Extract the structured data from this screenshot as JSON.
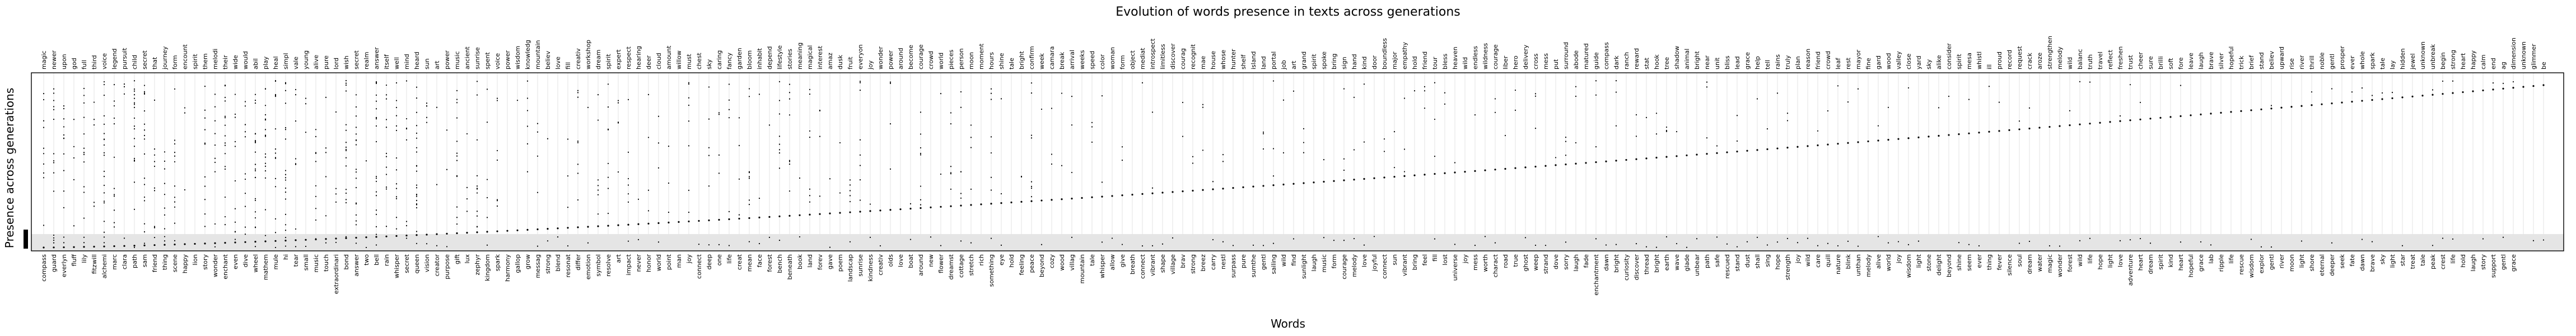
{
  "chart_data": {
    "type": "scatter",
    "title": "Evolution of words presence in texts across generations",
    "xlabel": "Words",
    "ylabel": "Presence across generations",
    "grid": "vertical",
    "y_range": [
      0,
      100
    ],
    "top_words": [
      "magic",
      "newer",
      "upon",
      "god",
      "full",
      "third",
      "voice",
      "legend",
      "pursuit",
      "child",
      "secret",
      "that",
      "journey",
      "form",
      "encount",
      "spirit",
      "them",
      "melodi",
      "their",
      "wide",
      "would",
      "abil",
      "play",
      "heal",
      "simpl",
      "vale",
      "young",
      "alive",
      "pure",
      "lord",
      "wish",
      "secret",
      "realm",
      "answer",
      "itself",
      "well",
      "mind",
      "heard",
      "sun",
      "art",
      "power",
      "music",
      "ancient",
      "sunrise",
      "spent",
      "voice",
      "power",
      "wisdom",
      "knowledg",
      "mountain",
      "believ",
      "love",
      "fill",
      "creativ",
      "workshop",
      "dream",
      "spirit",
      "expert",
      "respect",
      "hearing",
      "deer",
      "cloud",
      "amount",
      "willow",
      "must",
      "chest",
      "sky",
      "caring",
      "fancy",
      "garden",
      "bloom",
      "inhabit",
      "depend",
      "lifestyle",
      "stories",
      "meaning",
      "magical",
      "interest",
      "amaz",
      "dusk",
      "fruit",
      "everyon",
      "joy",
      "wonder",
      "power",
      "around",
      "become",
      "courage",
      "crowd",
      "world",
      "pieces",
      "person",
      "moon",
      "moment",
      "hours",
      "shine",
      "tale",
      "bright",
      "confirm",
      "week",
      "camara",
      "break",
      "arrival",
      "weeks",
      "speed",
      "color",
      "woman",
      "form",
      "object",
      "mediat",
      "introspect",
      "limitless",
      "discover",
      "courag",
      "recognit",
      "mae",
      "house",
      "whose",
      "hunter",
      "shelf",
      "island",
      "land",
      "portal",
      "job",
      "art",
      "grand",
      "spirit",
      "spoke",
      "bring",
      "sign",
      "hand",
      "kind",
      "door",
      "boundless",
      "major",
      "empathy",
      "hold",
      "friend",
      "tour",
      "bless",
      "heaven",
      "wild",
      "endless",
      "wildness",
      "courage",
      "liber",
      "hero",
      "delivery",
      "cross",
      "mess",
      "put",
      "surround",
      "abode",
      "matured",
      "guide",
      "compass",
      "dark",
      "ranch",
      "reward",
      "stat",
      "hook",
      "tree",
      "shadow",
      "animal",
      "bright",
      "near",
      "unit",
      "bliss",
      "lead",
      "grace",
      "help",
      "tell",
      "rains",
      "truly",
      "plan",
      "reason",
      "friend",
      "crowd",
      "leaf",
      "rest",
      "mayor",
      "fine",
      "gard",
      "wood",
      "valley",
      "close",
      "yard",
      "sky",
      "alike",
      "consider",
      "spirit",
      "mesa",
      "whistl",
      "ill",
      "proud",
      "record",
      "request",
      "crack",
      "aroze",
      "strengthen",
      "melody",
      "wild",
      "balanc",
      "truth",
      "travel",
      "reflect",
      "freshen",
      "trust",
      "cheer",
      "sure",
      "brilli",
      "soft",
      "fore",
      "leave",
      "laugh",
      "brave",
      "silver",
      "hopeful",
      "trick",
      "brief",
      "stand",
      "believ",
      "upward",
      "rise",
      "river",
      "thrill",
      "noble",
      "gentl",
      "prosper",
      "ever",
      "whole",
      "spark",
      "tale",
      "lay",
      "hidden",
      "jewel",
      "unknown",
      "unbreak",
      "begin",
      "strong",
      "heart",
      "happy",
      "calm",
      "end",
      "ag",
      "dimension",
      "unknown",
      "glimmer",
      "be"
    ],
    "bottom_words": [
      "compass",
      "guard",
      "everlyn",
      "fluff",
      "lily",
      "fitzwill",
      "alchemi",
      "marc",
      "clara",
      "path",
      "sam",
      "friend",
      "thing",
      "scene",
      "happy",
      "lion",
      "story",
      "wonder",
      "enchant",
      "even",
      "dive",
      "wheel",
      "mathem",
      "mule",
      "hi",
      "tear",
      "small",
      "music",
      "touch",
      "extraordinari",
      "bond",
      "answer",
      "two",
      "bell",
      "rain",
      "whisper",
      "secret",
      "queen",
      "vision",
      "creator",
      "purpose",
      "gift",
      "lux",
      "zephyr",
      "kingdom",
      "spark",
      "harmony",
      "gallop",
      "grow",
      "messag",
      "strong",
      "blend",
      "resonat",
      "differ",
      "emotion",
      "symbol",
      "resolve",
      "art",
      "impact",
      "never",
      "honor",
      "world",
      "point",
      "man",
      "joy",
      "connect",
      "deep",
      "one",
      "life",
      "creat",
      "mean",
      "face",
      "forest",
      "bench",
      "beneath",
      "book",
      "land",
      "forev",
      "gave",
      "poem",
      "landscap",
      "sunrise",
      "kindness",
      "creativ",
      "olds",
      "love",
      "boat",
      "around",
      "new",
      "flower",
      "dreamst",
      "cottage",
      "stretch",
      "rich",
      "something",
      "eye",
      "hold",
      "feeling",
      "peace",
      "beyond",
      "cozy",
      "wood",
      "villag",
      "mountain",
      "tale",
      "whisper",
      "allow",
      "give",
      "breath",
      "connect",
      "vibrant",
      "shape",
      "village",
      "brav",
      "strong",
      "breez",
      "carry",
      "nestl",
      "surpass",
      "pure",
      "sumthe",
      "gentl",
      "sailing",
      "wild",
      "find",
      "sunlight",
      "laugh",
      "music",
      "form",
      "courage",
      "melody",
      "love",
      "joyful",
      "connect",
      "sun",
      "vibrant",
      "bring",
      "feel",
      "fill",
      "lost",
      "universe",
      "joy",
      "mess",
      "worth",
      "charact",
      "road",
      "true",
      "ghost",
      "weep",
      "strand",
      "dove",
      "sorry",
      "laugh",
      "fade",
      "enchantment",
      "dawn",
      "bright",
      "curiosity",
      "discover",
      "thread",
      "bright",
      "earth",
      "wave",
      "glade",
      "unbear",
      "path",
      "safe",
      "rescued",
      "stand",
      "dust",
      "shall",
      "sing",
      "hope",
      "strength",
      "joy",
      "wild",
      "care",
      "quill",
      "nature",
      "blink",
      "unthan",
      "melody",
      "alive",
      "world",
      "joy",
      "wisdom",
      "light",
      "stone",
      "delight",
      "beyond",
      "shine",
      "seem",
      "ever",
      "thing",
      "fever",
      "silence",
      "soul",
      "dream",
      "water",
      "magic",
      "wonder",
      "forest",
      "wild",
      "life",
      "hope",
      "light",
      "love",
      "adventure",
      "heart",
      "dream",
      "spirit",
      "kind",
      "heart",
      "hopeful",
      "grace",
      "lab",
      "ripple",
      "life",
      "rescue",
      "wisdom",
      "explor",
      "gentl",
      "river",
      "moon",
      "light",
      "shore",
      "eternal",
      "deeper",
      "seek",
      "fate",
      "dawn",
      "brave",
      "sky",
      "light",
      "star",
      "treat",
      "tale",
      "peak",
      "crest",
      "life",
      "hold",
      "laugh",
      "story",
      "support",
      "gentl",
      "grace"
    ],
    "series": [
      {
        "name": "",
        "color": "#000000"
      }
    ]
  }
}
